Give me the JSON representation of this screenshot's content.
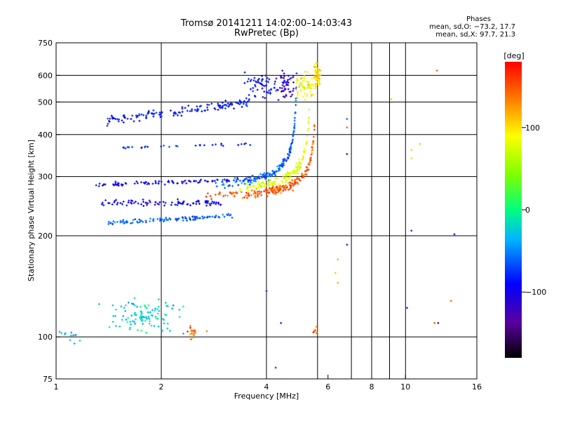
{
  "header": {
    "title_line1": "Tromsø 20141211 14:02:00–14:03:43",
    "title_line2": "RwPretec (Bp)"
  },
  "phases": {
    "heading": "Phases",
    "line_o": "mean, sd,O: −73.2, 17.7",
    "line_x": "mean, sd,X:  97.7, 21.3"
  },
  "chart_data": {
    "type": "scatter",
    "title": "Tromsø 20141211 14:02:00–14:03:43",
    "subtitle": "RwPretec (Bp)",
    "xlabel": "Frequency [MHz]",
    "ylabel": "Stationary phase Virtual Height [km]",
    "x_scale": "log",
    "y_scale": "log",
    "xlim": [
      1,
      16
    ],
    "ylim": [
      75,
      750
    ],
    "x_ticks": [
      1,
      2,
      4,
      6,
      8,
      10,
      16
    ],
    "x_tick_labels": [
      "1",
      "2",
      "4",
      "6",
      "8",
      "10",
      "16"
    ],
    "x_gridlines": [
      2,
      4,
      5.6,
      7,
      8,
      9,
      10
    ],
    "y_ticks": [
      75,
      100,
      200,
      300,
      400,
      500,
      600,
      750
    ],
    "y_tick_labels": [
      "75",
      "100",
      "200",
      "300",
      "400",
      "500",
      "600",
      "750"
    ],
    "y_gridlines": [
      100,
      200,
      300,
      400,
      500,
      600
    ],
    "grid": true,
    "colorbar": {
      "label": "[deg]",
      "range": [
        -180,
        180
      ],
      "ticks": [
        -100,
        0,
        100
      ],
      "tick_labels": [
        "−100",
        "0",
        "100"
      ],
      "colormap": "rainbow"
    },
    "traces": [
      {
        "x_range": [
          1.4,
          3.6
        ],
        "h_start": 440,
        "h_end": 500,
        "spread": 28,
        "n": 140,
        "phase": -85
      },
      {
        "x_range": [
          1.3,
          3.7
        ],
        "h_start": 283,
        "h_end": 295,
        "spread": 8,
        "n": 90,
        "phase": -95
      },
      {
        "x_range": [
          1.5,
          3.6
        ],
        "h_start": 365,
        "h_end": 375,
        "spread": 6,
        "n": 30,
        "phase": -80
      },
      {
        "x_range": [
          1.35,
          3.0
        ],
        "h_start": 250,
        "h_end": 250,
        "spread": 10,
        "n": 90,
        "phase": -95
      },
      {
        "x_range": [
          1.4,
          3.2
        ],
        "h_start": 218,
        "h_end": 230,
        "spread": 6,
        "n": 110,
        "phase": -60
      }
    ],
    "curves": [
      {
        "fc": 4.9,
        "x_min": 2.8,
        "x_max": 4.88,
        "h0": 240,
        "k": 0.15,
        "n": 160,
        "phase": -60
      },
      {
        "fc": 5.55,
        "x_min": 2.6,
        "x_max": 5.5,
        "h0": 228,
        "k": 0.13,
        "n": 200,
        "phase": 150
      },
      {
        "fc": 5.35,
        "x_min": 3.2,
        "x_max": 5.3,
        "h0": 235,
        "k": 0.14,
        "n": 140,
        "phase": 80
      }
    ],
    "clusters": [
      {
        "x": 3.9,
        "y": 560,
        "dx": 0.12,
        "dy": 0.09,
        "n": 60,
        "phase": -90
      },
      {
        "x": 4.55,
        "y": 560,
        "dx": 0.06,
        "dy": 0.1,
        "n": 50,
        "phase": -110
      },
      {
        "x": 5.2,
        "y": 560,
        "dx": 0.07,
        "dy": 0.09,
        "n": 60,
        "phase": 90
      },
      {
        "x": 5.6,
        "y": 600,
        "dx": 0.02,
        "dy": 0.08,
        "n": 60,
        "phase": 105
      },
      {
        "x": 1.8,
        "y": 115,
        "dx": 0.2,
        "dy": 0.12,
        "n": 110,
        "phase": -20
      },
      {
        "x": 1.1,
        "y": 100,
        "dx": 0.08,
        "dy": 0.04,
        "n": 12,
        "phase": -30
      },
      {
        "x": 2.45,
        "y": 103,
        "dx": 0.04,
        "dy": 0.04,
        "n": 18,
        "phase": 140
      },
      {
        "x": 5.5,
        "y": 104,
        "dx": 0.02,
        "dy": 0.02,
        "n": 8,
        "phase": 150
      }
    ],
    "scatter_points": [
      [
        6.8,
        350,
        -110
      ],
      [
        6.8,
        445,
        -60
      ],
      [
        6.8,
        420,
        150
      ],
      [
        6.8,
        188,
        -110
      ],
      [
        6.4,
        170,
        120
      ],
      [
        6.4,
        145,
        120
      ],
      [
        6.3,
        155,
        110
      ],
      [
        10.4,
        360,
        110
      ],
      [
        10.4,
        340,
        100
      ],
      [
        11,
        375,
        110
      ],
      [
        9.1,
        510,
        110
      ],
      [
        12.3,
        620,
        150
      ],
      [
        10.4,
        207,
        -120
      ],
      [
        13.8,
        202,
        -100
      ],
      [
        10.1,
        122,
        -80
      ],
      [
        12.4,
        110,
        -150
      ],
      [
        12.1,
        110,
        150
      ],
      [
        13.5,
        128,
        150
      ],
      [
        4.0,
        137,
        -110
      ],
      [
        4.4,
        110,
        -80
      ],
      [
        4.25,
        81,
        -80
      ],
      [
        2.7,
        104,
        140
      ]
    ]
  }
}
